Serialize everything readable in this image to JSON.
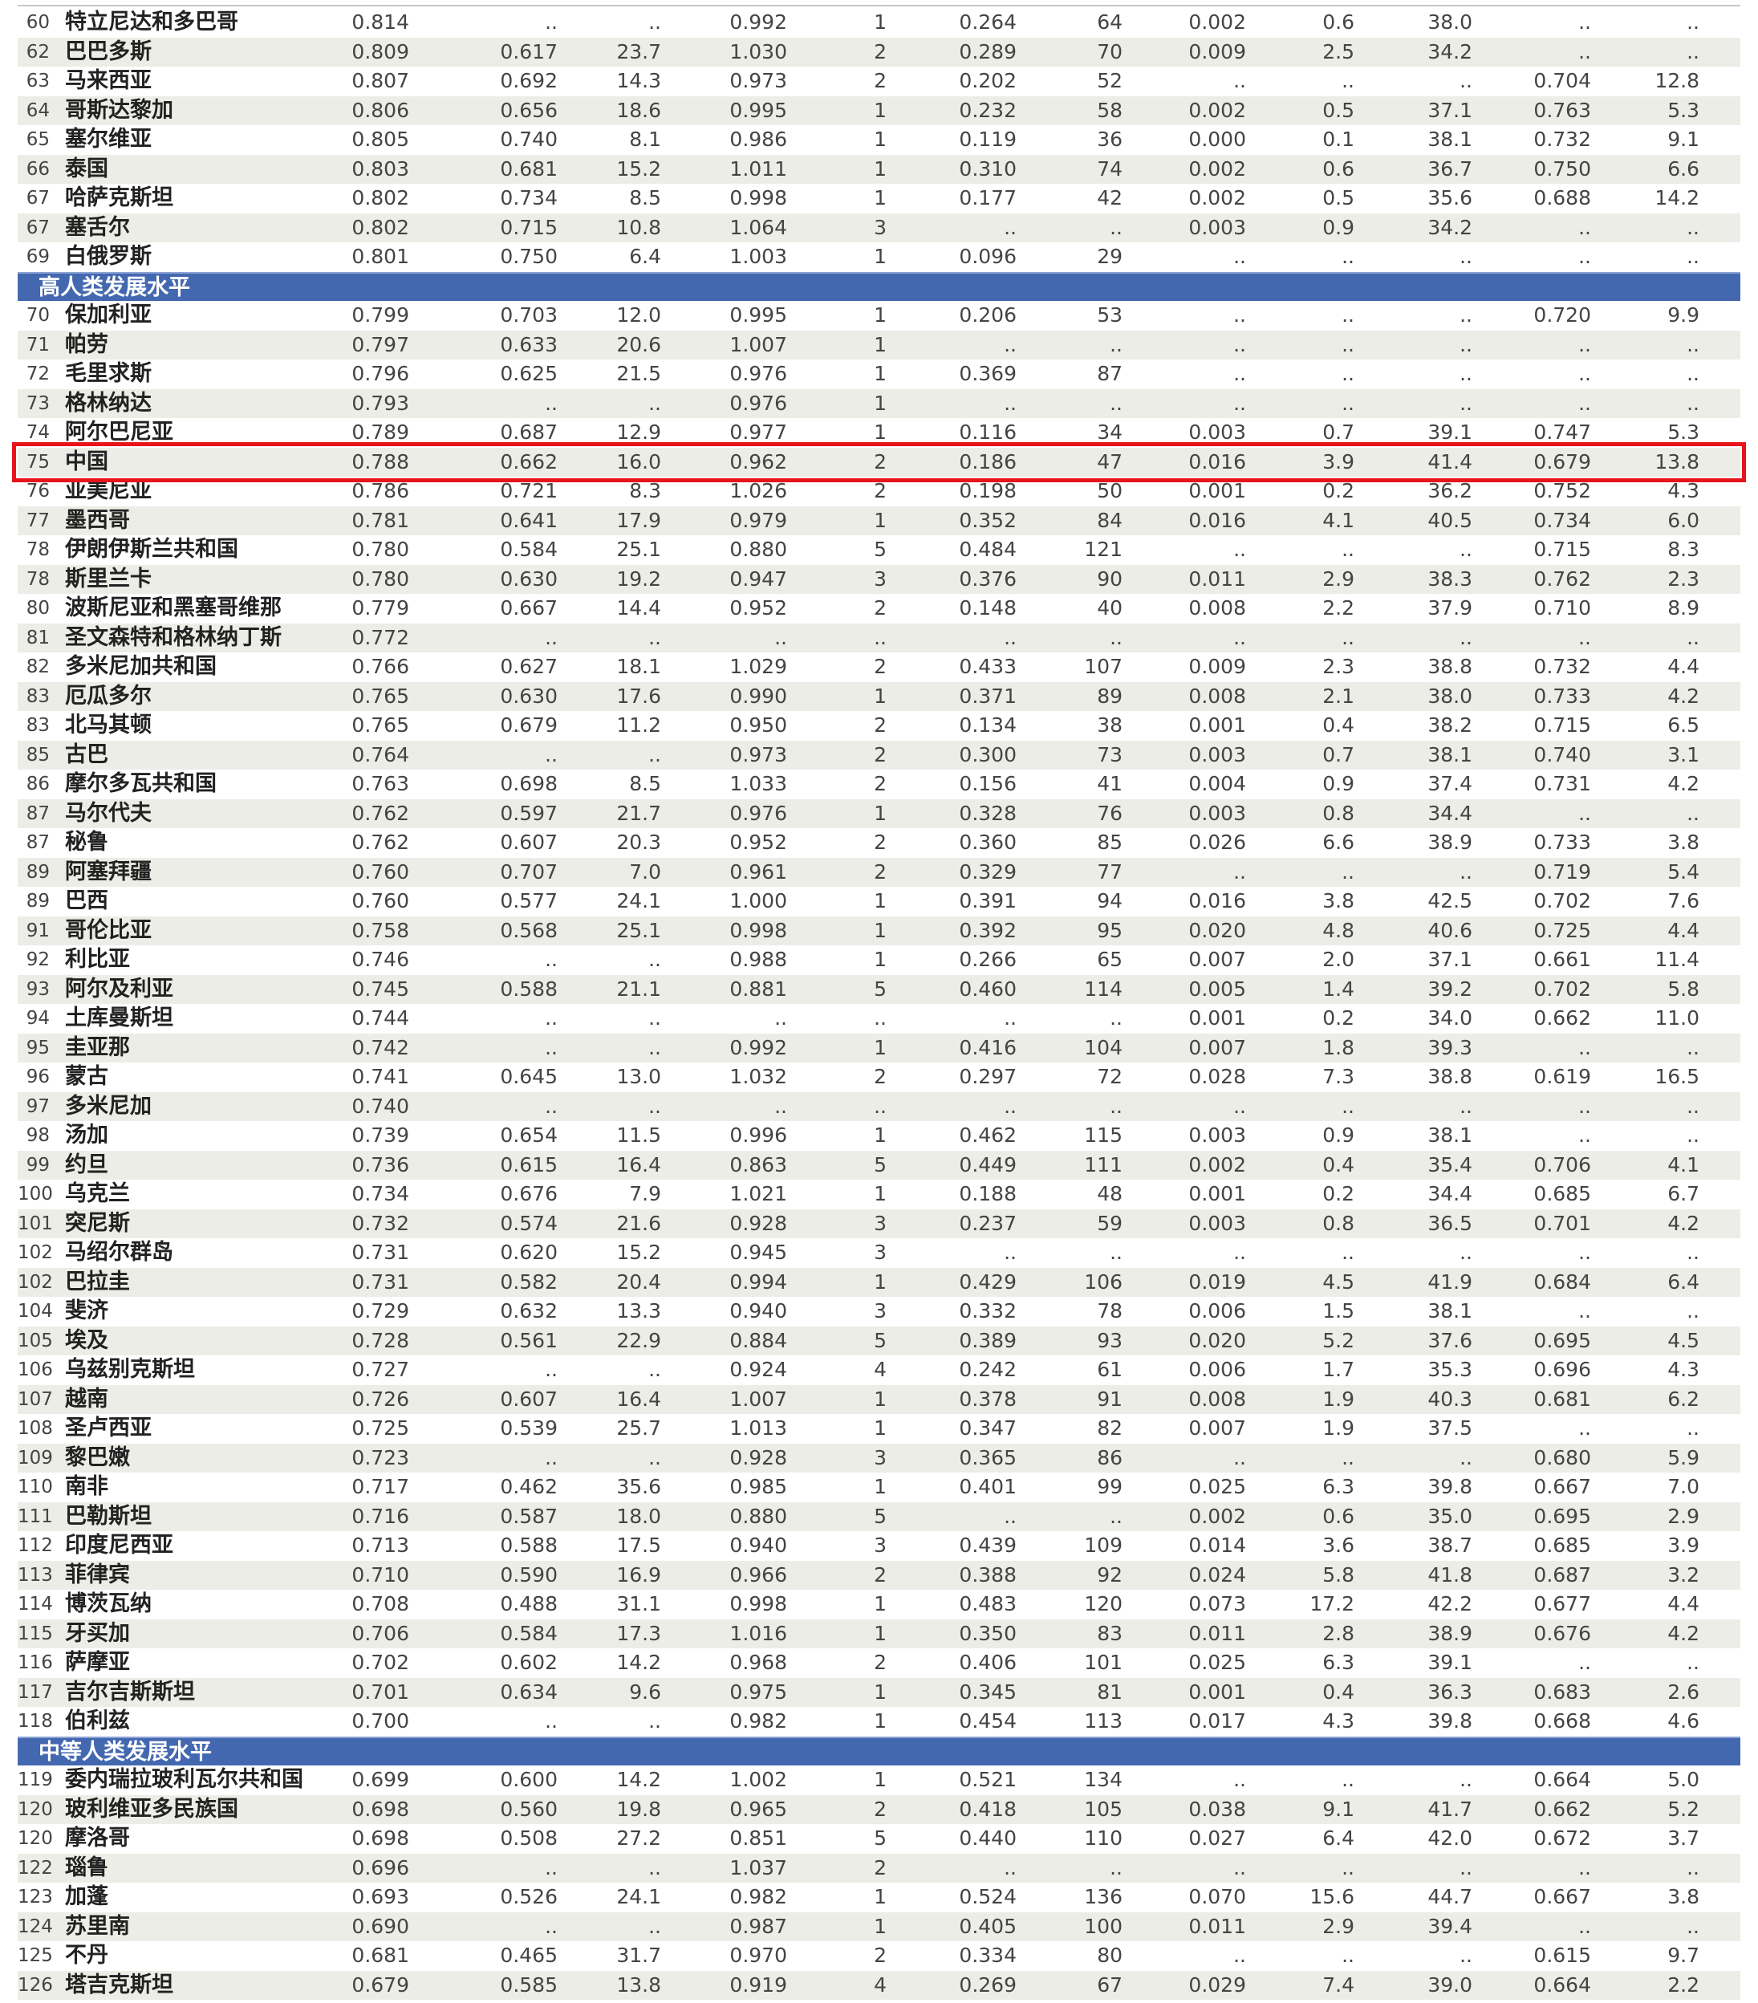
{
  "sections_order": [
    "top",
    "high",
    "medium"
  ],
  "group_headers": {
    "high": "高人类发展水平",
    "medium": "中等人类发展水平"
  },
  "highlighted_country": "中国",
  "colors": {
    "group_header_bg": "#4468b0",
    "stripe": "#ecede6",
    "highlight_border": "#e8141b"
  },
  "rows_top": [
    [
      "60",
      "特立尼达和多巴哥",
      "0.814",
      "..",
      "..",
      "0.992",
      "1",
      "0.264",
      "64",
      "0.002",
      "0.6",
      "38.0",
      "..",
      ".."
    ],
    [
      "62",
      "巴巴多斯",
      "0.809",
      "0.617",
      "23.7",
      "1.030",
      "2",
      "0.289",
      "70",
      "0.009",
      "2.5",
      "34.2",
      "..",
      ".."
    ],
    [
      "63",
      "马来西亚",
      "0.807",
      "0.692",
      "14.3",
      "0.973",
      "2",
      "0.202",
      "52",
      "..",
      "..",
      "..",
      "0.704",
      "12.8"
    ],
    [
      "64",
      "哥斯达黎加",
      "0.806",
      "0.656",
      "18.6",
      "0.995",
      "1",
      "0.232",
      "58",
      "0.002",
      "0.5",
      "37.1",
      "0.763",
      "5.3"
    ],
    [
      "65",
      "塞尔维亚",
      "0.805",
      "0.740",
      "8.1",
      "0.986",
      "1",
      "0.119",
      "36",
      "0.000",
      "0.1",
      "38.1",
      "0.732",
      "9.1"
    ],
    [
      "66",
      "泰国",
      "0.803",
      "0.681",
      "15.2",
      "1.011",
      "1",
      "0.310",
      "74",
      "0.002",
      "0.6",
      "36.7",
      "0.750",
      "6.6"
    ],
    [
      "67",
      "哈萨克斯坦",
      "0.802",
      "0.734",
      "8.5",
      "0.998",
      "1",
      "0.177",
      "42",
      "0.002",
      "0.5",
      "35.6",
      "0.688",
      "14.2"
    ],
    [
      "67",
      "塞舌尔",
      "0.802",
      "0.715",
      "10.8",
      "1.064",
      "3",
      "..",
      "..",
      "0.003",
      "0.9",
      "34.2",
      "..",
      ".."
    ],
    [
      "69",
      "白俄罗斯",
      "0.801",
      "0.750",
      "6.4",
      "1.003",
      "1",
      "0.096",
      "29",
      "..",
      "..",
      "..",
      "..",
      ".."
    ]
  ],
  "rows_high": [
    [
      "70",
      "保加利亚",
      "0.799",
      "0.703",
      "12.0",
      "0.995",
      "1",
      "0.206",
      "53",
      "..",
      "..",
      "..",
      "0.720",
      "9.9"
    ],
    [
      "71",
      "帕劳",
      "0.797",
      "0.633",
      "20.6",
      "1.007",
      "1",
      "..",
      "..",
      "..",
      "..",
      "..",
      "..",
      ".."
    ],
    [
      "72",
      "毛里求斯",
      "0.796",
      "0.625",
      "21.5",
      "0.976",
      "1",
      "0.369",
      "87",
      "..",
      "..",
      "..",
      "..",
      ".."
    ],
    [
      "73",
      "格林纳达",
      "0.793",
      "..",
      "..",
      "0.976",
      "1",
      "..",
      "..",
      "..",
      "..",
      "..",
      "..",
      ".."
    ],
    [
      "74",
      "阿尔巴尼亚",
      "0.789",
      "0.687",
      "12.9",
      "0.977",
      "1",
      "0.116",
      "34",
      "0.003",
      "0.7",
      "39.1",
      "0.747",
      "5.3"
    ],
    [
      "75",
      "中国",
      "0.788",
      "0.662",
      "16.0",
      "0.962",
      "2",
      "0.186",
      "47",
      "0.016",
      "3.9",
      "41.4",
      "0.679",
      "13.8"
    ],
    [
      "76",
      "亚美尼亚",
      "0.786",
      "0.721",
      "8.3",
      "1.026",
      "2",
      "0.198",
      "50",
      "0.001",
      "0.2",
      "36.2",
      "0.752",
      "4.3"
    ],
    [
      "77",
      "墨西哥",
      "0.781",
      "0.641",
      "17.9",
      "0.979",
      "1",
      "0.352",
      "84",
      "0.016",
      "4.1",
      "40.5",
      "0.734",
      "6.0"
    ],
    [
      "78",
      "伊朗伊斯兰共和国",
      "0.780",
      "0.584",
      "25.1",
      "0.880",
      "5",
      "0.484",
      "121",
      "..",
      "..",
      "..",
      "0.715",
      "8.3"
    ],
    [
      "78",
      "斯里兰卡",
      "0.780",
      "0.630",
      "19.2",
      "0.947",
      "3",
      "0.376",
      "90",
      "0.011",
      "2.9",
      "38.3",
      "0.762",
      "2.3"
    ],
    [
      "80",
      "波斯尼亚和黑塞哥维那",
      "0.779",
      "0.667",
      "14.4",
      "0.952",
      "2",
      "0.148",
      "40",
      "0.008",
      "2.2",
      "37.9",
      "0.710",
      "8.9"
    ],
    [
      "81",
      "圣文森特和格林纳丁斯",
      "0.772",
      "..",
      "..",
      "..",
      "..",
      "..",
      "..",
      "..",
      "..",
      "..",
      "..",
      ".."
    ],
    [
      "82",
      "多米尼加共和国",
      "0.766",
      "0.627",
      "18.1",
      "1.029",
      "2",
      "0.433",
      "107",
      "0.009",
      "2.3",
      "38.8",
      "0.732",
      "4.4"
    ],
    [
      "83",
      "厄瓜多尔",
      "0.765",
      "0.630",
      "17.6",
      "0.990",
      "1",
      "0.371",
      "89",
      "0.008",
      "2.1",
      "38.0",
      "0.733",
      "4.2"
    ],
    [
      "83",
      "北马其顿",
      "0.765",
      "0.679",
      "11.2",
      "0.950",
      "2",
      "0.134",
      "38",
      "0.001",
      "0.4",
      "38.2",
      "0.715",
      "6.5"
    ],
    [
      "85",
      "古巴",
      "0.764",
      "..",
      "..",
      "0.973",
      "2",
      "0.300",
      "73",
      "0.003",
      "0.7",
      "38.1",
      "0.740",
      "3.1"
    ],
    [
      "86",
      "摩尔多瓦共和国",
      "0.763",
      "0.698",
      "8.5",
      "1.033",
      "2",
      "0.156",
      "41",
      "0.004",
      "0.9",
      "37.4",
      "0.731",
      "4.2"
    ],
    [
      "87",
      "马尔代夫",
      "0.762",
      "0.597",
      "21.7",
      "0.976",
      "1",
      "0.328",
      "76",
      "0.003",
      "0.8",
      "34.4",
      "..",
      ".."
    ],
    [
      "87",
      "秘鲁",
      "0.762",
      "0.607",
      "20.3",
      "0.952",
      "2",
      "0.360",
      "85",
      "0.026",
      "6.6",
      "38.9",
      "0.733",
      "3.8"
    ],
    [
      "89",
      "阿塞拜疆",
      "0.760",
      "0.707",
      "7.0",
      "0.961",
      "2",
      "0.329",
      "77",
      "..",
      "..",
      "..",
      "0.719",
      "5.4"
    ],
    [
      "89",
      "巴西",
      "0.760",
      "0.577",
      "24.1",
      "1.000",
      "1",
      "0.391",
      "94",
      "0.016",
      "3.8",
      "42.5",
      "0.702",
      "7.6"
    ],
    [
      "91",
      "哥伦比亚",
      "0.758",
      "0.568",
      "25.1",
      "0.998",
      "1",
      "0.392",
      "95",
      "0.020",
      "4.8",
      "40.6",
      "0.725",
      "4.4"
    ],
    [
      "92",
      "利比亚",
      "0.746",
      "..",
      "..",
      "0.988",
      "1",
      "0.266",
      "65",
      "0.007",
      "2.0",
      "37.1",
      "0.661",
      "11.4"
    ],
    [
      "93",
      "阿尔及利亚",
      "0.745",
      "0.588",
      "21.1",
      "0.881",
      "5",
      "0.460",
      "114",
      "0.005",
      "1.4",
      "39.2",
      "0.702",
      "5.8"
    ],
    [
      "94",
      "土库曼斯坦",
      "0.744",
      "..",
      "..",
      "..",
      "..",
      "..",
      "..",
      "0.001",
      "0.2",
      "34.0",
      "0.662",
      "11.0"
    ],
    [
      "95",
      "圭亚那",
      "0.742",
      "..",
      "..",
      "0.992",
      "1",
      "0.416",
      "104",
      "0.007",
      "1.8",
      "39.3",
      "..",
      ".."
    ],
    [
      "96",
      "蒙古",
      "0.741",
      "0.645",
      "13.0",
      "1.032",
      "2",
      "0.297",
      "72",
      "0.028",
      "7.3",
      "38.8",
      "0.619",
      "16.5"
    ],
    [
      "97",
      "多米尼加",
      "0.740",
      "..",
      "..",
      "..",
      "..",
      "..",
      "..",
      "..",
      "..",
      "..",
      "..",
      ".."
    ],
    [
      "98",
      "汤加",
      "0.739",
      "0.654",
      "11.5",
      "0.996",
      "1",
      "0.462",
      "115",
      "0.003",
      "0.9",
      "38.1",
      "..",
      ".."
    ],
    [
      "99",
      "约旦",
      "0.736",
      "0.615",
      "16.4",
      "0.863",
      "5",
      "0.449",
      "111",
      "0.002",
      "0.4",
      "35.4",
      "0.706",
      "4.1"
    ],
    [
      "100",
      "乌克兰",
      "0.734",
      "0.676",
      "7.9",
      "1.021",
      "1",
      "0.188",
      "48",
      "0.001",
      "0.2",
      "34.4",
      "0.685",
      "6.7"
    ],
    [
      "101",
      "突尼斯",
      "0.732",
      "0.574",
      "21.6",
      "0.928",
      "3",
      "0.237",
      "59",
      "0.003",
      "0.8",
      "36.5",
      "0.701",
      "4.2"
    ],
    [
      "102",
      "马绍尔群岛",
      "0.731",
      "0.620",
      "15.2",
      "0.945",
      "3",
      "..",
      "..",
      "..",
      "..",
      "..",
      "..",
      ".."
    ],
    [
      "102",
      "巴拉圭",
      "0.731",
      "0.582",
      "20.4",
      "0.994",
      "1",
      "0.429",
      "106",
      "0.019",
      "4.5",
      "41.9",
      "0.684",
      "6.4"
    ],
    [
      "104",
      "斐济",
      "0.729",
      "0.632",
      "13.3",
      "0.940",
      "3",
      "0.332",
      "78",
      "0.006",
      "1.5",
      "38.1",
      "..",
      ".."
    ],
    [
      "105",
      "埃及",
      "0.728",
      "0.561",
      "22.9",
      "0.884",
      "5",
      "0.389",
      "93",
      "0.020",
      "5.2",
      "37.6",
      "0.695",
      "4.5"
    ],
    [
      "106",
      "乌兹别克斯坦",
      "0.727",
      "..",
      "..",
      "0.924",
      "4",
      "0.242",
      "61",
      "0.006",
      "1.7",
      "35.3",
      "0.696",
      "4.3"
    ],
    [
      "107",
      "越南",
      "0.726",
      "0.607",
      "16.4",
      "1.007",
      "1",
      "0.378",
      "91",
      "0.008",
      "1.9",
      "40.3",
      "0.681",
      "6.2"
    ],
    [
      "108",
      "圣卢西亚",
      "0.725",
      "0.539",
      "25.7",
      "1.013",
      "1",
      "0.347",
      "82",
      "0.007",
      "1.9",
      "37.5",
      "..",
      ".."
    ],
    [
      "109",
      "黎巴嫩",
      "0.723",
      "..",
      "..",
      "0.928",
      "3",
      "0.365",
      "86",
      "..",
      "..",
      "..",
      "0.680",
      "5.9"
    ],
    [
      "110",
      "南非",
      "0.717",
      "0.462",
      "35.6",
      "0.985",
      "1",
      "0.401",
      "99",
      "0.025",
      "6.3",
      "39.8",
      "0.667",
      "7.0"
    ],
    [
      "111",
      "巴勒斯坦",
      "0.716",
      "0.587",
      "18.0",
      "0.880",
      "5",
      "..",
      "..",
      "0.002",
      "0.6",
      "35.0",
      "0.695",
      "2.9"
    ],
    [
      "112",
      "印度尼西亚",
      "0.713",
      "0.588",
      "17.5",
      "0.940",
      "3",
      "0.439",
      "109",
      "0.014",
      "3.6",
      "38.7",
      "0.685",
      "3.9"
    ],
    [
      "113",
      "菲律宾",
      "0.710",
      "0.590",
      "16.9",
      "0.966",
      "2",
      "0.388",
      "92",
      "0.024",
      "5.8",
      "41.8",
      "0.687",
      "3.2"
    ],
    [
      "114",
      "博茨瓦纳",
      "0.708",
      "0.488",
      "31.1",
      "0.998",
      "1",
      "0.483",
      "120",
      "0.073",
      "17.2",
      "42.2",
      "0.677",
      "4.4"
    ],
    [
      "115",
      "牙买加",
      "0.706",
      "0.584",
      "17.3",
      "1.016",
      "1",
      "0.350",
      "83",
      "0.011",
      "2.8",
      "38.9",
      "0.676",
      "4.2"
    ],
    [
      "116",
      "萨摩亚",
      "0.702",
      "0.602",
      "14.2",
      "0.968",
      "2",
      "0.406",
      "101",
      "0.025",
      "6.3",
      "39.1",
      "..",
      ".."
    ],
    [
      "117",
      "吉尔吉斯斯坦",
      "0.701",
      "0.634",
      "9.6",
      "0.975",
      "1",
      "0.345",
      "81",
      "0.001",
      "0.4",
      "36.3",
      "0.683",
      "2.6"
    ],
    [
      "118",
      "伯利兹",
      "0.700",
      "..",
      "..",
      "0.982",
      "1",
      "0.454",
      "113",
      "0.017",
      "4.3",
      "39.8",
      "0.668",
      "4.6"
    ]
  ],
  "rows_medium": [
    [
      "119",
      "委内瑞拉玻利瓦尔共和国",
      "0.699",
      "0.600",
      "14.2",
      "1.002",
      "1",
      "0.521",
      "134",
      "..",
      "..",
      "..",
      "0.664",
      "5.0"
    ],
    [
      "120",
      "玻利维亚多民族国",
      "0.698",
      "0.560",
      "19.8",
      "0.965",
      "2",
      "0.418",
      "105",
      "0.038",
      "9.1",
      "41.7",
      "0.662",
      "5.2"
    ],
    [
      "120",
      "摩洛哥",
      "0.698",
      "0.508",
      "27.2",
      "0.851",
      "5",
      "0.440",
      "110",
      "0.027",
      "6.4",
      "42.0",
      "0.672",
      "3.7"
    ],
    [
      "122",
      "瑙鲁",
      "0.696",
      "..",
      "..",
      "1.037",
      "2",
      "..",
      "..",
      "..",
      "..",
      "..",
      "..",
      ".."
    ],
    [
      "123",
      "加蓬",
      "0.693",
      "0.526",
      "24.1",
      "0.982",
      "1",
      "0.524",
      "136",
      "0.070",
      "15.6",
      "44.7",
      "0.667",
      "3.8"
    ],
    [
      "124",
      "苏里南",
      "0.690",
      "..",
      "..",
      "0.987",
      "1",
      "0.405",
      "100",
      "0.011",
      "2.9",
      "39.4",
      "..",
      ".."
    ],
    [
      "125",
      "不丹",
      "0.681",
      "0.465",
      "31.7",
      "0.970",
      "2",
      "0.334",
      "80",
      "..",
      "..",
      "..",
      "0.615",
      "9.7"
    ],
    [
      "126",
      "塔吉克斯坦",
      "0.679",
      "0.585",
      "13.8",
      "0.919",
      "4",
      "0.269",
      "67",
      "0.029",
      "7.4",
      "39.0",
      "0.664",
      "2.2"
    ]
  ]
}
